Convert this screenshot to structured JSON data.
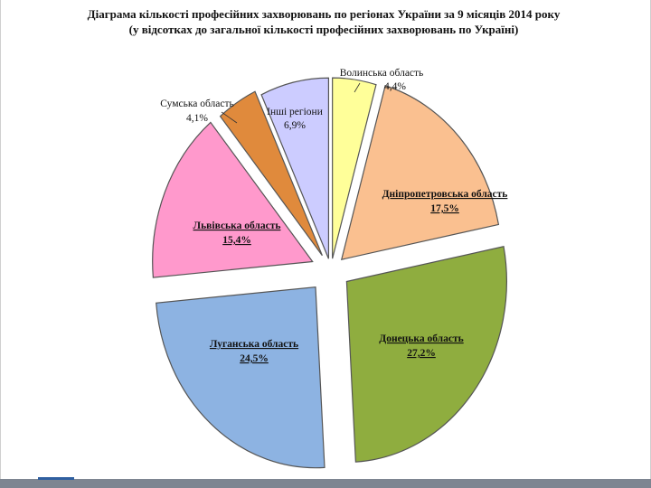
{
  "chart_data": {
    "type": "pie",
    "title": "Діаграма кількості професійних захворювань по регіонах України за 9 місяців 2014 року",
    "subtitle": "(у відсотках до загальної кількості професійних захворювань по Україні)",
    "slices": [
      {
        "name": "Волинська область",
        "label": "4,4%",
        "value": 4.4,
        "color": "#ffff99"
      },
      {
        "name": "Дніпропетровська область",
        "label": "17,5%",
        "value": 17.5,
        "color": "#fac090"
      },
      {
        "name": "Донецька область",
        "label": "27,2%",
        "value": 27.2,
        "color": "#8fad3f"
      },
      {
        "name": "Луганська область",
        "label": "24,5%",
        "value": 24.5,
        "color": "#8db3e2"
      },
      {
        "name": "Львівська область",
        "label": "15,4%",
        "value": 15.4,
        "color": "#ff99cc"
      },
      {
        "name": "Сумська область",
        "label": "4,1%",
        "value": 4.1,
        "color": "#e08a3c"
      },
      {
        "name": "Інші регіони",
        "label": "6,9%",
        "value": 6.9,
        "color": "#ccccff"
      }
    ]
  }
}
